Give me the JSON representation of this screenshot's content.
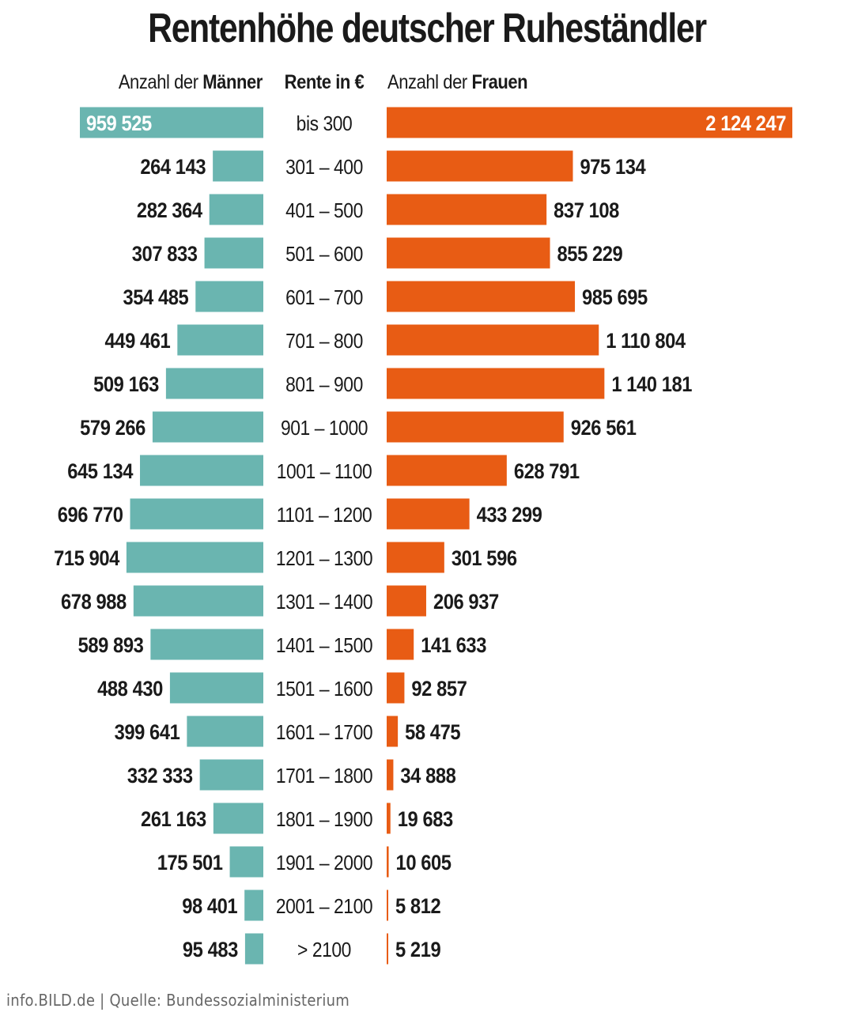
{
  "title": "Rentenhöhe deutscher Ruheständler",
  "headers": {
    "men_prefix": "Anzahl der ",
    "men_bold": "Männer",
    "rente": "Rente in €",
    "women_prefix": "Anzahl der ",
    "women_bold": "Frauen"
  },
  "source": "info.BILD.de | Quelle: Bundessozialministerium",
  "colors": {
    "men": "#6ab5b0",
    "women": "#e85c14",
    "text": "#1a1a1a",
    "inner_label": "#ffffff"
  },
  "chart_data": {
    "type": "bar",
    "orientation": "horizontal-butterfly",
    "categories": [
      "bis 300",
      "301 – 400",
      "401 – 500",
      "501 – 600",
      "601 – 700",
      "701 – 800",
      "801 – 900",
      "901 – 1000",
      "1001 – 1100",
      "1101 – 1200",
      "1201 – 1300",
      "1301 – 1400",
      "1401 – 1500",
      "1501 – 1600",
      "1601 – 1700",
      "1701 – 1800",
      "1801 – 1900",
      "1901 – 2000",
      "2001 – 2100",
      "> 2100"
    ],
    "series": [
      {
        "name": "Männer",
        "values": [
          959525,
          264143,
          282364,
          307833,
          354485,
          449461,
          509163,
          579266,
          645134,
          696770,
          715904,
          678988,
          589893,
          488430,
          399641,
          332333,
          261163,
          175501,
          98401,
          95483
        ]
      },
      {
        "name": "Frauen",
        "values": [
          2124247,
          975134,
          837108,
          855229,
          985695,
          1110804,
          1140181,
          926561,
          628791,
          433299,
          301596,
          206937,
          141633,
          92857,
          58475,
          34888,
          19683,
          10605,
          5812,
          5219
        ]
      }
    ],
    "value_labels_men": [
      "959 525",
      "264 143",
      "282 364",
      "307 833",
      "354 485",
      "449 461",
      "509 163",
      "579 266",
      "645 134",
      "696 770",
      "715 904",
      "678 988",
      "589 893",
      "488 430",
      "399 641",
      "332 333",
      "261 163",
      "175 501",
      "98 401",
      "95 483"
    ],
    "value_labels_women": [
      "2 124 247",
      "975 134",
      "837 108",
      "855 229",
      "985 695",
      "1 110 804",
      "1 140 181",
      "926 561",
      "628 791",
      "433 299",
      "301 596",
      "206 937",
      "141 633",
      "92 857",
      "58 475",
      "34 888",
      "19 683",
      "10 605",
      "5 812",
      "5 219"
    ]
  }
}
